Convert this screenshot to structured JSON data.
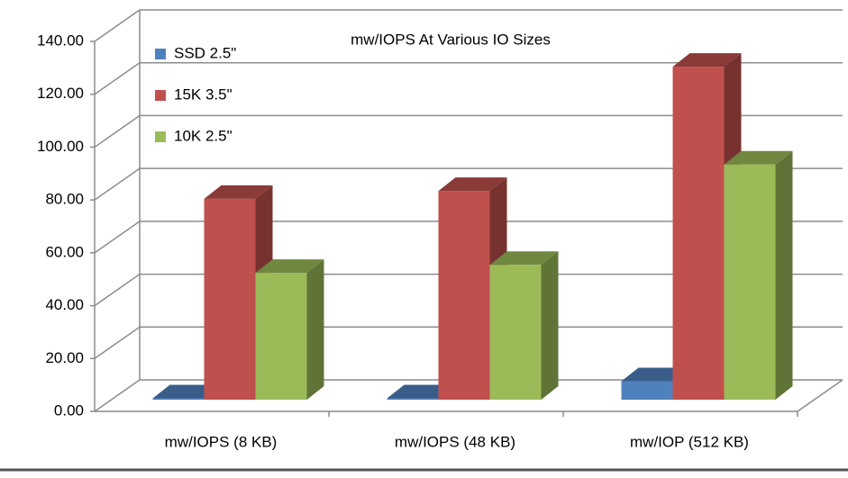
{
  "chart_data": {
    "type": "bar3d",
    "title": "mw/IOPS  At Various  IO Sizes",
    "categories": [
      "mw/IOPS (8 KB)",
      "mw/IOPS (48 KB)",
      "mw/IOP (512 KB)"
    ],
    "series": [
      {
        "name": "SSD 2.5\"",
        "color": "#4f81bd",
        "values": [
          0.5,
          0.5,
          7
        ]
      },
      {
        "name": "15K 3.5\"",
        "color": "#c0504d",
        "values": [
          76,
          79,
          126
        ]
      },
      {
        "name": "10K 2.5\"",
        "color": "#9bbb59",
        "values": [
          48,
          51,
          89
        ]
      }
    ],
    "ylim": [
      0,
      140
    ],
    "yticks": [
      {
        "value": 0,
        "label": "0.00"
      },
      {
        "value": 20,
        "label": "20.00"
      },
      {
        "value": 40,
        "label": "40.00"
      },
      {
        "value": 60,
        "label": "60.00"
      },
      {
        "value": 80,
        "label": "80.00"
      },
      {
        "value": 100,
        "label": "100.00"
      },
      {
        "value": 120,
        "label": "120.00"
      },
      {
        "value": 140,
        "label": "140.00"
      }
    ],
    "grid": true,
    "legend": "upper left"
  }
}
